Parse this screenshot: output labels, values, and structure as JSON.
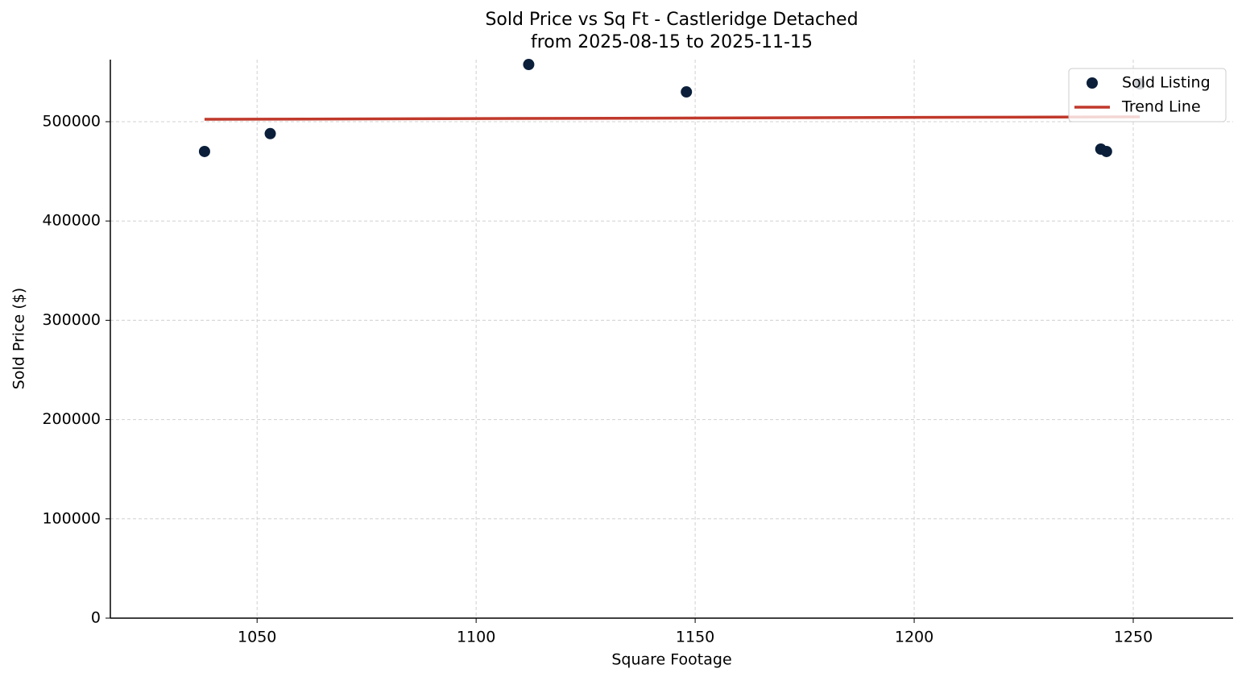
{
  "chart_data": {
    "type": "scatter",
    "title": "Sold Price vs Sq Ft - Castleridge Detached",
    "subtitle": "from 2025-08-15 to 2025-11-15",
    "x_label": "Square Footage",
    "y_label": "Sold Price ($)",
    "series": [
      {
        "name": "Sold Listing",
        "type": "scatter",
        "color": "#0b1f3a",
        "x": [
          1038,
          1053,
          1112,
          1148,
          1251.5,
          1242.6,
          1243.9
        ],
        "values": [
          470000,
          488000,
          557600,
          530000,
          538000,
          472400,
          470000
        ]
      },
      {
        "name": "Trend Line",
        "type": "line",
        "color": "#c0392b",
        "x": [
          1038,
          1251.5
        ],
        "values": [
          502400,
          504900
        ]
      }
    ],
    "xlim": [
      1016.5,
      1272.8
    ],
    "xticks": [
      1050,
      1100,
      1150,
      1200,
      1250
    ],
    "ylim": [
      0,
      562500
    ],
    "yticks": [
      0,
      100000,
      200000,
      300000,
      400000,
      500000
    ],
    "grid": true,
    "legend": "upper-right"
  }
}
